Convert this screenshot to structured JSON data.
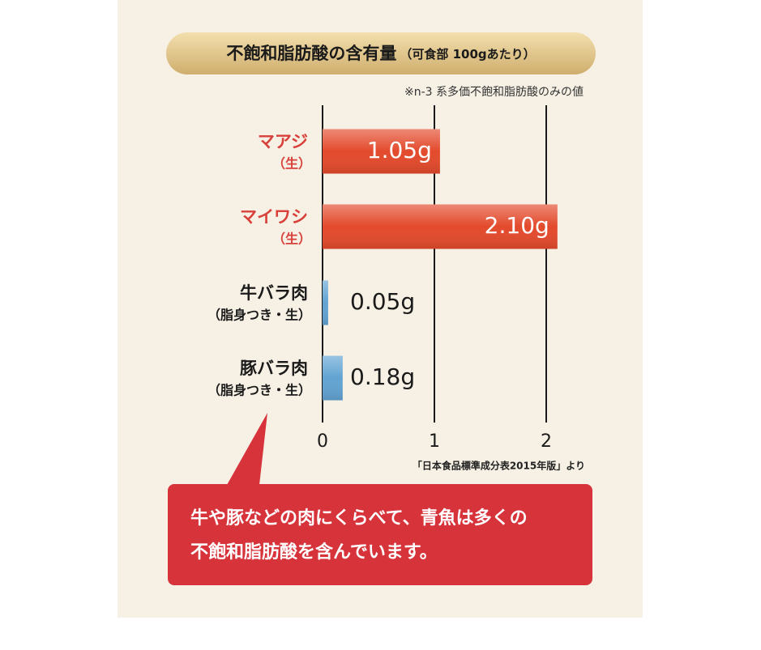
{
  "chart_data": {
    "type": "hbar",
    "title": "不飽和脂肪酸の含有量",
    "subtitle": "（可食部 100gあたり）",
    "note": "※n-3 系多価不飽和脂肪酸のみの値",
    "source": "「日本食品標準成分表2015年版」より",
    "categories": [
      "マアジ",
      "マイワシ",
      "牛バラ肉",
      "豚バラ肉"
    ],
    "category_notes": [
      "（生）",
      "（生）",
      "（脂身つき・生）",
      "（脂身つき・生）"
    ],
    "category_colors": [
      "#d8403a",
      "#d8403a",
      "#1a1a1a",
      "#1a1a1a"
    ],
    "values": [
      1.05,
      2.1,
      0.05,
      0.18
    ],
    "value_labels": [
      "1.05g",
      "2.10g",
      "0.05g",
      "0.18g"
    ],
    "label_positions": [
      "inside",
      "inside",
      "outside",
      "outside"
    ],
    "colors": [
      "#e34a2c",
      "#e34a2c",
      "#62a3d2",
      "#62a3d2"
    ],
    "xlim": [
      0,
      2
    ],
    "xticks": [
      0,
      1,
      2
    ],
    "grid": true,
    "callout": [
      "牛や豚などの肉にくらべて、青魚は多くの",
      "不飽和脂肪酸を含んでいます。"
    ]
  }
}
